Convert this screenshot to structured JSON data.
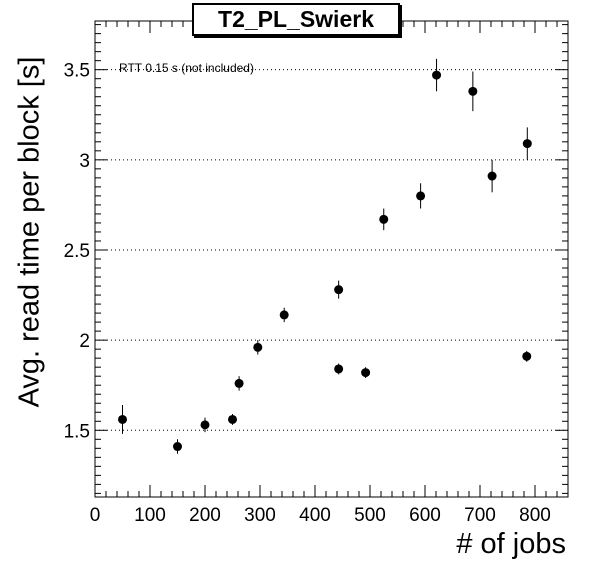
{
  "chart_data": {
    "type": "scatter",
    "title": "T2_PL_Swierk",
    "xlabel": "# of jobs",
    "ylabel": "Avg. read time per block [s]",
    "annotation": "RTT 0.15 s (not included)",
    "xlim": [
      0,
      860
    ],
    "ylim": [
      1.13,
      3.77
    ],
    "x_ticks": [
      0,
      100,
      200,
      300,
      400,
      500,
      600,
      700,
      800
    ],
    "x_tick_labels": [
      "0",
      "100",
      "200",
      "300",
      "400",
      "500",
      "600",
      "700",
      "800"
    ],
    "y_ticks": [
      1.5,
      2,
      2.5,
      3,
      3.5
    ],
    "y_tick_labels": [
      "1.5",
      "2",
      "2.5",
      "3",
      "3.5"
    ],
    "y_grid": true,
    "grid_style": "dotted",
    "marker_color": "#000000",
    "series": [
      {
        "points": [
          {
            "x": 50,
            "y": 1.56,
            "err": 0.08
          },
          {
            "x": 150,
            "y": 1.41,
            "err": 0.04
          },
          {
            "x": 200,
            "y": 1.53,
            "err": 0.04
          },
          {
            "x": 250,
            "y": 1.56,
            "err": 0.03
          },
          {
            "x": 262,
            "y": 1.76,
            "err": 0.04
          },
          {
            "x": 296,
            "y": 1.96,
            "err": 0.04
          },
          {
            "x": 344,
            "y": 2.14,
            "err": 0.04
          },
          {
            "x": 443,
            "y": 1.84,
            "err": 0.03
          },
          {
            "x": 443,
            "y": 2.28,
            "err": 0.05
          },
          {
            "x": 492,
            "y": 1.82,
            "err": 0.03
          },
          {
            "x": 525,
            "y": 2.67,
            "err": 0.06
          },
          {
            "x": 592,
            "y": 2.8,
            "err": 0.07
          },
          {
            "x": 621,
            "y": 3.47,
            "err": 0.09
          },
          {
            "x": 687,
            "y": 3.38,
            "err": 0.11
          },
          {
            "x": 722,
            "y": 2.91,
            "err": 0.09
          },
          {
            "x": 785,
            "y": 1.91,
            "err": 0.03
          },
          {
            "x": 786,
            "y": 3.09,
            "err": 0.09
          }
        ]
      }
    ]
  }
}
